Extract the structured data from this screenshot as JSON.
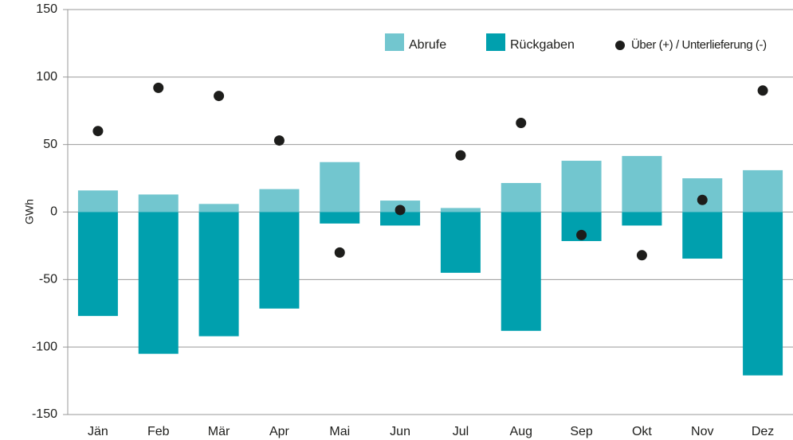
{
  "chart_data": {
    "type": "bar",
    "y_label": "GWh",
    "categories": [
      "Jän",
      "Feb",
      "Mär",
      "Apr",
      "Mai",
      "Jun",
      "Jul",
      "Aug",
      "Sep",
      "Okt",
      "Nov",
      "Dez"
    ],
    "series": [
      {
        "name": "Abrufe",
        "color": "#72c6cf",
        "values": [
          16,
          13,
          6,
          17,
          37,
          8.5,
          3,
          21.5,
          38,
          41.5,
          25,
          31
        ]
      },
      {
        "name": "Rückgaben",
        "color": "#00a0ae",
        "values": [
          -77,
          -105,
          -92,
          -71.5,
          -8.5,
          -10,
          -45,
          -88,
          -21.5,
          -10,
          -34.5,
          -121
        ]
      },
      {
        "name": "Über (+) / Unterlieferung (-)",
        "color": "#1d1d1b",
        "type": "scatter",
        "values": [
          60,
          92,
          86,
          53,
          -30,
          1.5,
          42,
          66,
          -17,
          -32,
          9,
          90
        ]
      }
    ],
    "ylim": [
      -150,
      150
    ],
    "yticks": [
      -150,
      -100,
      -50,
      0,
      50,
      100,
      150
    ],
    "grid": true,
    "legend": "top-right"
  }
}
